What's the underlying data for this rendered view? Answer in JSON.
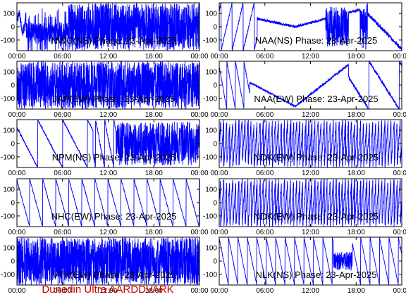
{
  "footer": "Dunedin Ultra AARDDVARK",
  "colors": {
    "trace": "#0000ff",
    "axis": "#000000",
    "footer": "#cc0000"
  },
  "chart_data": [
    {
      "type": "line",
      "title": "NWC(NS) Phase: 23-Apr-2025",
      "xlim": [
        0,
        24
      ],
      "ylim": [
        -180,
        180
      ],
      "yticks": [
        -100,
        0,
        100
      ],
      "xticks": [
        "00:00",
        "06:00",
        "12:00",
        "18:00",
        "00:00"
      ],
      "pattern": "ns_nwc"
    },
    {
      "type": "line",
      "title": "NAA(NS) Phase: 23-Apr-2025",
      "xlim": [
        0,
        24
      ],
      "ylim": [
        -180,
        180
      ],
      "yticks": [
        -100,
        0,
        100
      ],
      "xticks": [
        "00:00",
        "06:00",
        "12:00",
        "18:00",
        "00:00"
      ],
      "pattern": "naa_ns"
    },
    {
      "type": "line",
      "title": "JAP(EW) Phase: 23-Apr-2025",
      "xlim": [
        0,
        24
      ],
      "ylim": [
        -180,
        180
      ],
      "yticks": [
        -100,
        0,
        100
      ],
      "xticks": [
        "00:00",
        "06:00",
        "12:00",
        "18:00",
        "00:00"
      ],
      "pattern": "solid_jap"
    },
    {
      "type": "line",
      "title": "NAA(EW) Phase: 23-Apr-2025",
      "xlim": [
        0,
        24
      ],
      "ylim": [
        -180,
        180
      ],
      "yticks": [
        -100,
        0,
        100
      ],
      "xticks": [
        "00:00",
        "06:00",
        "12:00",
        "18:00",
        "00:00"
      ],
      "pattern": "naa_ew"
    },
    {
      "type": "line",
      "title": "NPM(NS) Phase: 23-Apr-2025",
      "xlim": [
        0,
        24
      ],
      "ylim": [
        -180,
        180
      ],
      "yticks": [
        -100,
        0,
        100
      ],
      "xticks": [
        "00:00",
        "06:00",
        "12:00",
        "18:00",
        "00:00"
      ],
      "pattern": "npm"
    },
    {
      "type": "line",
      "title": "NDK(EW) Phase: 23-Apr-2025",
      "xlim": [
        0,
        24
      ],
      "ylim": [
        -180,
        180
      ],
      "yticks": [
        -100,
        0,
        100
      ],
      "xticks": [
        "00:00",
        "06:00",
        "12:00",
        "18:00",
        "00:00"
      ],
      "pattern": "dense"
    },
    {
      "type": "line",
      "title": "NHC(EW) Phase: 23-Apr-2025",
      "xlim": [
        0,
        24
      ],
      "ylim": [
        -180,
        180
      ],
      "yticks": [
        -100,
        0,
        100
      ],
      "xticks": [
        "00:00",
        "06:00",
        "12:00",
        "18:00",
        "00:00"
      ],
      "pattern": "sawtooth_nhc"
    },
    {
      "type": "line",
      "title": "NDK(EW) Phase: 23-Apr-2025",
      "xlim": [
        0,
        24
      ],
      "ylim": [
        -180,
        180
      ],
      "yticks": [
        -100,
        0,
        100
      ],
      "xticks": [
        "00:00",
        "06:00",
        "12:00",
        "18:00",
        "00:00"
      ],
      "pattern": "dense"
    },
    {
      "type": "line",
      "title": "VTX(EW) Phase: 23-Apr-2025",
      "xlim": [
        0,
        24
      ],
      "ylim": [
        -180,
        180
      ],
      "yticks": [
        -100,
        0,
        100
      ],
      "xticks": [
        "00:00",
        "06:00",
        "12:00",
        "18:00",
        "00:00"
      ],
      "pattern": "solid_vtx"
    },
    {
      "type": "line",
      "title": "NLK(NS) Phase: 23-Apr-2025",
      "xlim": [
        0,
        24
      ],
      "ylim": [
        -180,
        180
      ],
      "yticks": [
        -100,
        0,
        100
      ],
      "xticks": [
        "00:00",
        "06:00",
        "12:00",
        "18:00",
        "00:00"
      ],
      "pattern": "sawtooth_nlk"
    }
  ]
}
